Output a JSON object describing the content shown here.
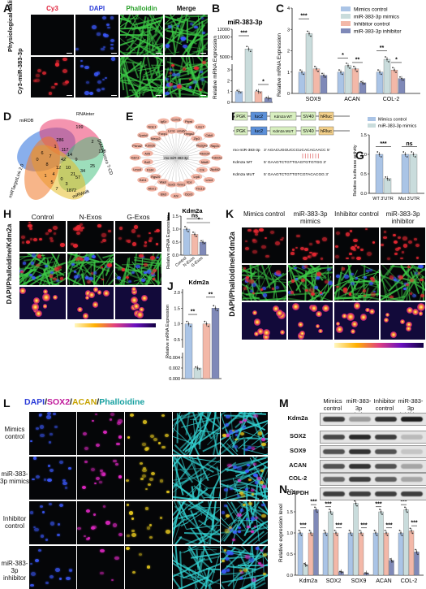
{
  "panels": {
    "A": {
      "label": "A",
      "cols": [
        "Cy3",
        "DAPI",
        "Phalloidin",
        "Merge"
      ],
      "col_colors": [
        "#e0203a",
        "#2a3bd8",
        "#2aa02a",
        "#111111"
      ],
      "rows": [
        "Physiological Saline",
        "Cy3-miR-383-3p"
      ]
    },
    "B": {
      "label": "B",
      "title": "miR-383-3p",
      "ylabel": "Relative mRNA Expression"
    },
    "C": {
      "label": "C",
      "ylabel": "Relative mRNA Expression",
      "legend": [
        "Mimics control",
        "miR-383-3p mimics",
        "Inhibitor control",
        "miR-383-3p inhibitor"
      ]
    },
    "D": {
      "label": "D",
      "sets": [
        "miRDB",
        "RNAinter",
        "DIANA-micro T-CD",
        "miRWalk",
        "miRTargetLink 2.0"
      ],
      "numbers": [
        "199",
        "286",
        "2",
        "117",
        "1",
        "14",
        "7",
        "42",
        "9",
        "12",
        "10",
        "8",
        "4",
        "21",
        "128",
        "6",
        "1",
        "5",
        "57",
        "34",
        "25",
        "1872",
        "0",
        "3",
        "0",
        "7"
      ]
    },
    "E": {
      "label": "E",
      "center": "rno-miR-383-3p",
      "genes": [
        "Ccnd1",
        "Sema6d",
        "Ptprd",
        "Hmga2",
        "Lmo7",
        "Zfp3",
        "Cdk6",
        "Pla2g4a",
        "Rap2c",
        "Rbm24",
        "Kdm2a",
        "Nfat5",
        "Zfp462",
        "Crk",
        "Lrrc4",
        "Lrp6",
        "Tbc1d",
        "Vps",
        "Clcn3",
        "Pbrm1",
        "Ahr",
        "Sox5",
        "Elk3",
        "Wasl",
        "Atxn1",
        "Rgs20",
        "Ezh1",
        "Fzd4",
        "Lmo4",
        "Bcl2",
        "Kdm1",
        "Arl5",
        "Plxna2",
        "Kdm2b",
        "Cpeb4",
        "Mecp2",
        "Nr3c1",
        "Foxp1",
        "Igf1r",
        "Lrrn1"
      ]
    },
    "F": {
      "label": "F",
      "seq1_name": "rno-miR-383-3p",
      "seq1": "3' AGACUGGUCCCUCACACAACC 5'",
      "seq2_name": "Kdm2a WT",
      "seq2": "5' GAAGTCTGTTGAGTGTGTGG 3'",
      "seq3_name": "Kdm2a MUT",
      "seq3": "5' GAAGTCTGTTGTCGTACACGG 3'",
      "construct_wt": [
        "PGK",
        "luc2",
        "Kdm2a WT",
        "SV40",
        "hRluc"
      ],
      "construct_mut": [
        "PGK",
        "luc2",
        "Kdm2a MUT",
        "SV40",
        "hRluc"
      ]
    },
    "G": {
      "label": "G",
      "ylabel": "Relative luciferase activity",
      "legend": [
        "Mimics control",
        "miR-383-3p mimics"
      ],
      "sig": [
        "***",
        "ns"
      ]
    },
    "H": {
      "label": "H",
      "cols": [
        "Control",
        "N-Exos",
        "G-Exos"
      ],
      "ylabel": "DAPI/Phalloidine/Kdm2a"
    },
    "I": {
      "label": "I",
      "title": "Kdm2a",
      "ylabel": "Relative mRNA Expression",
      "sig": [
        "ns",
        "*"
      ]
    },
    "J": {
      "label": "J",
      "title": "Kdm2a",
      "ylabel": "Relative mRNA Expression",
      "sig": [
        "**",
        "**"
      ]
    },
    "K": {
      "label": "K",
      "cols": [
        "Mimics control",
        "miR-383-3p mimics",
        "Inhibitor control",
        "miR-383-3p inhibitor"
      ],
      "ylabel": "DAPI/Phalloidine/Kdm2a"
    },
    "L": {
      "label": "L",
      "title_parts": [
        "DAPI",
        "/",
        "SOX2",
        "/",
        "ACAN",
        "/",
        "Phalloidine"
      ],
      "title_colors": [
        "#2a3bd8",
        "#111111",
        "#c0189a",
        "#111111",
        "#c7a300",
        "#111111",
        "#16a0a0"
      ],
      "rows": [
        "Mimics control",
        "miR-383-3p mimics",
        "Inhibitor control",
        "miR-383-3p inhibitor"
      ]
    },
    "M": {
      "label": "M",
      "cols": [
        "Mimics control",
        "miR-383-3p mimics",
        "Inhibitor control",
        "miR-383-3p inhibitor"
      ],
      "proteins": [
        "Kdm2a",
        "SOX2",
        "SOX9",
        "ACAN",
        "COL-2",
        "GAPDH"
      ]
    },
    "N": {
      "label": "N",
      "ylabel": "Relative expression level"
    }
  },
  "chart_data": [
    {
      "panel": "B",
      "type": "bar",
      "title": "miR-383-3p",
      "categories": [
        "Mimics control",
        "miR-383-3p mimics",
        "Inhibitor control",
        "miR-383-3p inhibitor"
      ],
      "values": [
        1,
        2000,
        1,
        0.4
      ],
      "ylim_display": [
        "0",
        "1",
        "2",
        "3",
        "5000",
        "10000",
        "12000"
      ],
      "sig": [
        "***",
        "*"
      ],
      "colors": [
        "#aac4e6",
        "#c9dcdc",
        "#f3b8a8",
        "#7f89b8"
      ]
    },
    {
      "panel": "C",
      "type": "bar",
      "categories": [
        "SOX9",
        "ACAN",
        "COL-2"
      ],
      "ylim": [
        0,
        4
      ],
      "series": [
        {
          "name": "Mimics control",
          "values": [
            1.0,
            1.0,
            1.0
          ]
        },
        {
          "name": "miR-383-3p mimics",
          "values": [
            2.8,
            1.3,
            1.6
          ]
        },
        {
          "name": "Inhibitor control",
          "values": [
            1.15,
            1.15,
            1.1
          ]
        },
        {
          "name": "miR-383-3p inhibitor",
          "values": [
            0.85,
            0.5,
            0.7
          ]
        }
      ],
      "sig": [
        "***",
        "*",
        "**",
        "**",
        "*"
      ],
      "colors": [
        "#aac4e6",
        "#c9dcdc",
        "#f3b8a8",
        "#7f89b8"
      ]
    },
    {
      "panel": "G",
      "type": "bar",
      "categories": [
        "WT 3'UTR",
        "Mut 3'UTR"
      ],
      "ylim": [
        0,
        1.5
      ],
      "yticks": [
        "0.0",
        "0.5",
        "1.0",
        "1.5"
      ],
      "series": [
        {
          "name": "Mimics control",
          "values": [
            1.0,
            1.0
          ]
        },
        {
          "name": "miR-383-3p mimics",
          "values": [
            0.38,
            1.0
          ]
        }
      ],
      "colors": [
        "#aac4e6",
        "#c9dcdc"
      ]
    },
    {
      "panel": "I",
      "type": "bar",
      "categories": [
        "Control",
        "N-Exos",
        "G-Exos"
      ],
      "values": [
        1.0,
        0.8,
        0.5
      ],
      "ylim": [
        0,
        1.5
      ],
      "yticks": [
        "0.0",
        "0.5",
        "1.0",
        "1.5"
      ],
      "colors": [
        "#aac4e6",
        "#f3b8a8",
        "#7f89b8"
      ]
    },
    {
      "panel": "J",
      "type": "bar",
      "categories": [
        "Mimics control",
        "miR-383-3p mimics",
        "Inhibitor control",
        "miR-383-3p inhibitor"
      ],
      "values": [
        1.0,
        0.002,
        1.0,
        1.5
      ],
      "yticks": [
        "0.000",
        "0.002",
        "0.004",
        "0.5",
        "1.0",
        "1.5",
        "2.0"
      ],
      "colors": [
        "#aac4e6",
        "#c9dcdc",
        "#f3b8a8",
        "#7f89b8"
      ]
    },
    {
      "panel": "N",
      "type": "bar",
      "categories": [
        "Kdm2a",
        "SOX2",
        "SOX9",
        "ACAN",
        "COL-2"
      ],
      "ylim": [
        0,
        2
      ],
      "yticks": [
        "0.0",
        "0.5",
        "1.0",
        "1.5",
        "2.0"
      ],
      "series": [
        {
          "name": "Mimics control",
          "values": [
            1.0,
            1.0,
            1.0,
            1.0,
            1.0
          ]
        },
        {
          "name": "miR-383-3p mimics",
          "values": [
            0.25,
            1.5,
            1.7,
            1.5,
            1.55
          ]
        },
        {
          "name": "Inhibitor control",
          "values": [
            1.0,
            1.0,
            1.0,
            1.0,
            1.05
          ]
        },
        {
          "name": "miR-383-3p inhibitor",
          "values": [
            1.55,
            0.08,
            0.05,
            0.35,
            0.55
          ]
        }
      ],
      "sig": [
        "***",
        "***",
        "***",
        "***",
        "***",
        "***",
        "***",
        "***",
        "***",
        "***"
      ],
      "colors": [
        "#aac4e6",
        "#c9dcdc",
        "#f3b8a8",
        "#7f89b8"
      ]
    }
  ]
}
